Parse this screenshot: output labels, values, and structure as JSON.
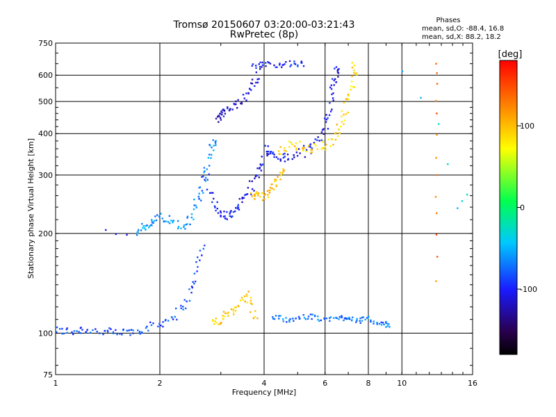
{
  "chart_data": {
    "type": "scatter",
    "title": "Tromsø 20150607 03:20:00-03:21:43",
    "subtitle": "RwPretec (8p)",
    "xlabel": "Frequency [MHz]",
    "ylabel": "Stationary phase Virtual Height [km]",
    "x_scale": "log",
    "y_scale": "log",
    "xlim": [
      1,
      16
    ],
    "ylim": [
      75,
      750
    ],
    "grid": true,
    "x_ticks": [
      1,
      2,
      4,
      6,
      8,
      10,
      16
    ],
    "x_tick_labels": [
      "1",
      "2",
      "4",
      "6",
      "8",
      "10",
      "16"
    ],
    "y_ticks": [
      75,
      100,
      200,
      300,
      400,
      500,
      600,
      750
    ],
    "y_tick_labels": [
      "75",
      "100",
      "200",
      "300",
      "400",
      "500",
      "600",
      "750"
    ],
    "phase_stats": {
      "title": "Phases",
      "line_o": "mean, sd,O: -88.4, 16.8",
      "line_x": "mean, sd,X:  88.2, 18.2"
    },
    "colorbar": {
      "label": "[deg]",
      "range": [
        -180,
        180
      ],
      "ticks": [
        100,
        0,
        -100
      ],
      "tick_labels": [
        "100",
        "0",
        "-100"
      ],
      "colors": [
        "#000000",
        "#2a0050",
        "#1a1aff",
        "#00c8ff",
        "#00ff50",
        "#ffff00",
        "#ff8000",
        "#ff0000"
      ]
    },
    "traces": [
      {
        "x": [
          1.0,
          1.1,
          1.2,
          1.35,
          1.5,
          1.65,
          1.8,
          2.0,
          2.2,
          2.4,
          2.55,
          2.65
        ],
        "y": [
          102,
          101,
          103,
          101,
          100,
          101,
          103,
          107,
          113,
          125,
          150,
          185
        ],
        "phase": -85,
        "spread": 0.03
      },
      {
        "x": [
          1.7,
          1.8,
          1.9,
          2.0,
          2.15,
          2.35,
          2.5,
          2.6,
          2.7,
          2.8,
          2.9
        ],
        "y": [
          200,
          210,
          215,
          225,
          220,
          205,
          230,
          260,
          300,
          360,
          380
        ],
        "phase": -60,
        "spread": 0.03
      },
      {
        "x": [
          1.4,
          1.6
        ],
        "y": [
          203,
          198
        ],
        "phase": -110,
        "spread": 0.01
      },
      {
        "x": [
          2.7,
          2.85,
          3.0,
          3.15,
          3.3,
          3.5,
          3.7,
          3.9,
          4.1,
          4.3,
          4.6,
          5.0,
          5.4,
          5.8,
          6.1,
          6.3,
          6.4,
          6.5
        ],
        "y": [
          300,
          245,
          230,
          225,
          235,
          255,
          280,
          315,
          360,
          345,
          335,
          345,
          360,
          390,
          440,
          520,
          590,
          640
        ],
        "phase": -105,
        "spread": 0.035
      },
      {
        "x": [
          2.95,
          3.0,
          3.1,
          3.3,
          3.5,
          3.7,
          3.85
        ],
        "y": [
          440,
          455,
          470,
          480,
          510,
          560,
          610
        ],
        "phase": -115,
        "spread": 0.03
      },
      {
        "x": [
          3.7,
          4.0,
          4.4,
          4.8,
          5.2
        ],
        "y": [
          640,
          648,
          646,
          650,
          648
        ],
        "phase": -100,
        "spread": 0.02
      },
      {
        "x": [
          3.7,
          3.85,
          4.0,
          4.2,
          4.4,
          4.55
        ],
        "y": [
          262,
          258,
          260,
          270,
          290,
          310
        ],
        "phase": 100,
        "spread": 0.03
      },
      {
        "x": [
          4.4,
          4.8,
          5.2,
          5.6,
          6.0,
          6.4,
          6.7,
          7.0,
          7.2,
          7.3
        ],
        "y": [
          350,
          370,
          365,
          360,
          370,
          390,
          430,
          500,
          580,
          640
        ],
        "phase": 90,
        "spread": 0.035
      },
      {
        "x": [
          2.8,
          3.0,
          3.2,
          3.4,
          3.6,
          3.8
        ],
        "y": [
          108,
          110,
          115,
          122,
          130,
          110
        ],
        "phase": 95,
        "spread": 0.03
      },
      {
        "x": [
          4.2,
          4.6,
          5.0,
          5.5,
          6.0,
          6.6,
          7.0,
          7.5,
          8.0,
          8.8,
          9.2
        ],
        "y": [
          112,
          110,
          111,
          112,
          110,
          111,
          112,
          109,
          110,
          107,
          105
        ],
        "phase": -70,
        "spread": 0.02
      },
      {
        "x": [
          12.6,
          12.6,
          12.6,
          12.6,
          12.6,
          12.6,
          12.6
        ],
        "y": [
          650,
          560,
          460,
          340,
          260,
          200,
          145
        ],
        "phase": 130,
        "spread": 0.01
      },
      {
        "x": [
          10.0,
          12.8,
          14.5,
          15.5
        ],
        "y": [
          610,
          430,
          240,
          260
        ],
        "phase": -40,
        "spread": 0.01
      }
    ]
  }
}
